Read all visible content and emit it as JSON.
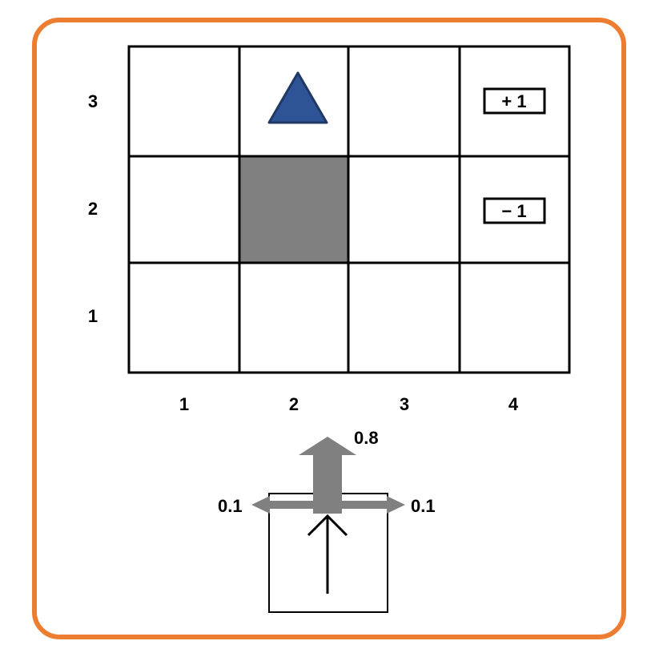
{
  "colors": {
    "frame": "#ED7D31",
    "wall": "#808080",
    "agent_fill": "#2E5496",
    "agent_stroke": "#1F3864",
    "arrow": "#808080",
    "grid": "#000000"
  },
  "grid": {
    "columns": 4,
    "rows": 3,
    "row_labels": [
      "3",
      "2",
      "1"
    ],
    "col_labels": [
      "1",
      "2",
      "3",
      "4"
    ],
    "wall_cell": {
      "col": 2,
      "row": 2
    },
    "agent_cell": {
      "col": 2,
      "row": 3
    },
    "agent_icon": "triangle-icon",
    "terminals": [
      {
        "col": 4,
        "row": 3,
        "label": "+ 1"
      },
      {
        "col": 4,
        "row": 2,
        "label": "− 1"
      }
    ]
  },
  "transition": {
    "intended_action": "up",
    "forward_prob": "0.8",
    "left_prob": "0.1",
    "right_prob": "0.1"
  }
}
